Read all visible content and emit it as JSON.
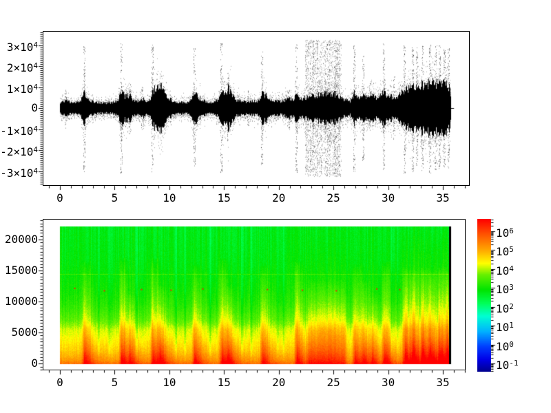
{
  "figure": {
    "background": "#ffffff",
    "foreground": "#000000"
  },
  "chart_data": [
    {
      "type": "line",
      "subtype": "audio-waveform",
      "position": "top",
      "title": "",
      "xlabel": "",
      "ylabel": "",
      "xlim": [
        -1.6,
        37.5
      ],
      "ylim": [
        -36400,
        36400
      ],
      "grid": false,
      "line_color": "#000000",
      "xticks": [
        0,
        5,
        10,
        15,
        20,
        25,
        30,
        35
      ],
      "xtick_labels": [
        "0",
        "5",
        "10",
        "15",
        "20",
        "25",
        "30",
        "35"
      ],
      "x_minor_step": 1,
      "yticks": [
        -30000,
        -20000,
        -10000,
        0,
        10000,
        20000,
        30000
      ],
      "ytick_labels": [
        "-3×10^4",
        "-2×10^4",
        "-1×10^4",
        "0",
        "1×10^4",
        "2×10^4",
        "3×10^4"
      ],
      "y_minor_step": 1000,
      "duration_s": 36,
      "envelope": [
        [
          0,
          2600
        ],
        [
          0.4,
          3600
        ],
        [
          0.6,
          3000
        ],
        [
          1.0,
          2500
        ],
        [
          1.5,
          2700
        ],
        [
          1.9,
          3600
        ],
        [
          2.2,
          6800
        ],
        [
          2.5,
          4600
        ],
        [
          3.0,
          2900
        ],
        [
          3.6,
          2400
        ],
        [
          4.2,
          2300
        ],
        [
          4.8,
          2600
        ],
        [
          5.3,
          3600
        ],
        [
          5.6,
          8200
        ],
        [
          5.9,
          5200
        ],
        [
          6.3,
          6000
        ],
        [
          6.7,
          3600
        ],
        [
          7.1,
          3100
        ],
        [
          7.5,
          4300
        ],
        [
          7.9,
          3300
        ],
        [
          8.2,
          3800
        ],
        [
          8.45,
          7800
        ],
        [
          8.8,
          9800
        ],
        [
          9.1,
          11800
        ],
        [
          9.5,
          8600
        ],
        [
          9.9,
          4600
        ],
        [
          10.3,
          3300
        ],
        [
          10.8,
          2700
        ],
        [
          11.3,
          2500
        ],
        [
          11.8,
          2700
        ],
        [
          12.25,
          6800
        ],
        [
          12.6,
          5300
        ],
        [
          13.0,
          3400
        ],
        [
          13.6,
          2700
        ],
        [
          14.1,
          2800
        ],
        [
          14.5,
          4000
        ],
        [
          14.75,
          7800
        ],
        [
          15.1,
          6200
        ],
        [
          15.35,
          9000
        ],
        [
          15.7,
          6000
        ],
        [
          16.1,
          3700
        ],
        [
          16.6,
          3000
        ],
        [
          17.1,
          2900
        ],
        [
          17.6,
          3200
        ],
        [
          18.1,
          3100
        ],
        [
          18.45,
          6400
        ],
        [
          18.8,
          5800
        ],
        [
          19.2,
          4100
        ],
        [
          19.7,
          3400
        ],
        [
          20.1,
          3200
        ],
        [
          20.5,
          3500
        ],
        [
          20.9,
          4300
        ],
        [
          21.3,
          3900
        ],
        [
          21.6,
          6500
        ],
        [
          22.0,
          4300
        ],
        [
          22.5,
          4800
        ],
        [
          23.0,
          5300
        ],
        [
          23.5,
          5800
        ],
        [
          24.0,
          6300
        ],
        [
          24.6,
          7000
        ],
        [
          25.1,
          6500
        ],
        [
          25.6,
          5300
        ],
        [
          26.0,
          3500
        ],
        [
          26.5,
          3100
        ],
        [
          26.9,
          7000
        ],
        [
          27.2,
          4700
        ],
        [
          27.7,
          5800
        ],
        [
          28.1,
          5100
        ],
        [
          28.5,
          6600
        ],
        [
          29.0,
          4500
        ],
        [
          29.6,
          7400
        ],
        [
          30.0,
          5500
        ],
        [
          30.5,
          5000
        ],
        [
          31.0,
          5800
        ],
        [
          31.5,
          8400
        ],
        [
          32.0,
          9200
        ],
        [
          32.5,
          9800
        ],
        [
          33.0,
          10600
        ],
        [
          33.5,
          11000
        ],
        [
          34.0,
          11400
        ],
        [
          34.5,
          11200
        ],
        [
          35.0,
          11600
        ],
        [
          35.3,
          10800
        ],
        [
          35.6,
          9500
        ],
        [
          35.72,
          3000
        ],
        [
          35.75,
          600
        ],
        [
          36.0,
          400
        ]
      ],
      "spikes": [
        [
          0.5,
          9500
        ],
        [
          2.2,
          30500
        ],
        [
          5.6,
          31000
        ],
        [
          6.35,
          12500
        ],
        [
          7.5,
          10500
        ],
        [
          8.45,
          30500
        ],
        [
          12.25,
          28500
        ],
        [
          14.75,
          31000
        ],
        [
          15.35,
          15500
        ],
        [
          17.2,
          8500
        ],
        [
          18.45,
          27500
        ],
        [
          20.9,
          9500
        ],
        [
          21.6,
          30500
        ],
        [
          26.9,
          30500
        ],
        [
          27.7,
          25000
        ],
        [
          28.3,
          12000
        ],
        [
          29.6,
          31000
        ],
        [
          30.5,
          15500
        ],
        [
          31.5,
          31000
        ],
        [
          32.2,
          30500
        ],
        [
          32.6,
          29000
        ],
        [
          33.1,
          30000
        ],
        [
          33.8,
          31000
        ],
        [
          34.3,
          29500
        ],
        [
          34.7,
          30000
        ],
        [
          35.1,
          28000
        ],
        [
          35.5,
          29000
        ]
      ],
      "noise_block": {
        "t_start": 22.4,
        "t_end": 25.7,
        "amplitude": 32500
      }
    },
    {
      "type": "heatmap",
      "subtype": "spectrogram",
      "position": "bottom",
      "title": "",
      "xlabel": "",
      "ylabel": "",
      "xlim": [
        -1.6,
        37.1
      ],
      "ylim": [
        -1000,
        23200
      ],
      "grid": false,
      "xticks": [
        0,
        5,
        10,
        15,
        20,
        25,
        30,
        35
      ],
      "xtick_labels": [
        "0",
        "5",
        "10",
        "15",
        "20",
        "25",
        "30",
        "35"
      ],
      "x_minor_step": 1,
      "yticks": [
        0,
        5000,
        10000,
        15000,
        20000
      ],
      "ytick_labels": [
        "0",
        "5000",
        "10000",
        "15000",
        "20000"
      ],
      "y_minor_step": 500,
      "time_range_s": [
        0,
        35.7
      ],
      "freq_range_hz": [
        0,
        22050
      ],
      "scale": "log",
      "colormap": "jet-rainbow",
      "colormap_stops": [
        [
          -1.43,
          "#000090"
        ],
        [
          -0.8,
          "#0000e8"
        ],
        [
          -0.1,
          "#0040ff"
        ],
        [
          0.7,
          "#00b4ff"
        ],
        [
          1.5,
          "#00ffd2"
        ],
        [
          2.2,
          "#00ff55"
        ],
        [
          2.9,
          "#00e400"
        ],
        [
          3.7,
          "#66f000"
        ],
        [
          4.3,
          "#ffff00"
        ],
        [
          5.0,
          "#ffa800"
        ],
        [
          5.9,
          "#ff4e00"
        ],
        [
          6.65,
          "#ff0000"
        ]
      ],
      "colorbar": {
        "position": "right",
        "tick_values": [
          6,
          5,
          4,
          3,
          2,
          1,
          0,
          -1
        ],
        "tick_labels": [
          "10^6",
          "10^5",
          "10^4",
          "10^3",
          "10^2",
          "10^1",
          "10^0",
          "10^-1"
        ],
        "vmin_log": -1.43,
        "vmax_log": 6.65
      },
      "freq_profile_log10": [
        [
          0,
          5.55
        ],
        [
          250,
          5.35
        ],
        [
          600,
          5.15
        ],
        [
          1200,
          4.95
        ],
        [
          2000,
          4.72
        ],
        [
          3000,
          4.52
        ],
        [
          4200,
          4.32
        ],
        [
          5500,
          4.1
        ],
        [
          6200,
          3.85
        ],
        [
          7000,
          3.6
        ],
        [
          8500,
          3.35
        ],
        [
          10000,
          3.15
        ],
        [
          12000,
          3.0
        ],
        [
          14000,
          2.9
        ],
        [
          16000,
          2.82
        ],
        [
          19000,
          2.76
        ],
        [
          22050,
          2.72
        ]
      ],
      "events": [
        [
          2.2,
          1.05,
          16500
        ],
        [
          5.6,
          1.1,
          17000
        ],
        [
          6.35,
          0.6,
          11000
        ],
        [
          8.45,
          1.1,
          17000
        ],
        [
          9.1,
          0.8,
          12500
        ],
        [
          12.25,
          1.0,
          16000
        ],
        [
          14.75,
          1.1,
          17000
        ],
        [
          15.35,
          0.7,
          12500
        ],
        [
          18.45,
          1.0,
          16000
        ],
        [
          21.6,
          1.05,
          16500
        ],
        [
          26.9,
          1.0,
          16000
        ],
        [
          27.7,
          0.75,
          13500
        ],
        [
          28.5,
          0.6,
          11000
        ],
        [
          29.6,
          1.05,
          16500
        ],
        [
          31.5,
          0.95,
          15500
        ],
        [
          32.2,
          0.85,
          15000
        ],
        [
          33.1,
          0.9,
          15500
        ],
        [
          33.8,
          0.85,
          15000
        ],
        [
          34.7,
          0.9,
          15500
        ],
        [
          35.4,
          0.85,
          15000
        ]
      ],
      "hot_region": {
        "t_start": 22.4,
        "t_end": 26.35,
        "strength": 0.9,
        "f_top": 13500
      },
      "loud_tail": {
        "t_start": 30.9,
        "t_end": 35.7,
        "strength": 0.42,
        "f_top": 21000
      },
      "quiet_dips": [
        3.5,
        4.5,
        7.0,
        10.6,
        11.4,
        13.7,
        16.6,
        17.5,
        19.9,
        20.4,
        30.3
      ],
      "horizontal_line": {
        "f_hz": 14400,
        "boost": 0.5
      },
      "specks_hz": [
        [
          1.3,
          12200
        ],
        [
          4.0,
          11800
        ],
        [
          7.4,
          12000
        ],
        [
          10.1,
          11900
        ],
        [
          13.0,
          12100
        ],
        [
          18.9,
          12000
        ],
        [
          22.1,
          11900
        ],
        [
          25.2,
          11800
        ],
        [
          28.9,
          12100
        ],
        [
          31.0,
          12000
        ]
      ],
      "speck_color": "#e83000",
      "end_marker_color": "#000000"
    }
  ]
}
